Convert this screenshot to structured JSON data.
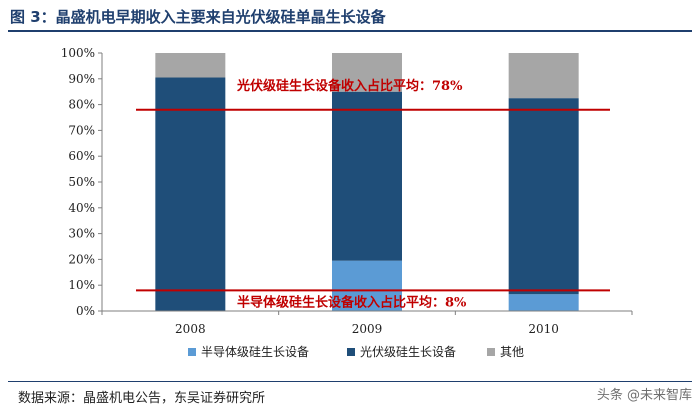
{
  "figure": {
    "title": "图 3：晶盛机电早期收入主要来自光伏级硅单晶生长设备",
    "source": "数据来源：晶盛机电公告，东吴证券研究所",
    "watermark": "头条 @未来智库"
  },
  "chart_data": {
    "type": "bar",
    "stacked": true,
    "categories": [
      "2008",
      "2009",
      "2010"
    ],
    "series": [
      {
        "name": "半导体级硅生长设备",
        "values": [
          0,
          19.5,
          6.5
        ],
        "color": "#5b9bd5"
      },
      {
        "name": "光伏级硅生长设备",
        "values": [
          90.5,
          65.5,
          76
        ],
        "color": "#1f4e79"
      },
      {
        "name": "其他",
        "values": [
          9.5,
          15,
          17.5
        ],
        "color": "#a6a6a6"
      }
    ],
    "ylim": [
      0,
      100
    ],
    "yticks": [
      "0%",
      "10%",
      "20%",
      "30%",
      "40%",
      "50%",
      "60%",
      "70%",
      "80%",
      "90%",
      "100%"
    ],
    "grid": false,
    "legend_position": "bottom",
    "annotations": [
      {
        "text": "光伏级硅生长设备收入占比平均：78%",
        "y": 78,
        "color": "#c00000"
      },
      {
        "text": "半导体级硅生长设备收入占比平均：8%",
        "y": 8,
        "color": "#c00000"
      }
    ]
  }
}
